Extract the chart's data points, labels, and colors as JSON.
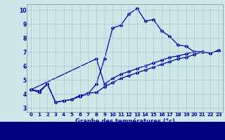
{
  "xlabel": "Graphe des températures (°c)",
  "bg_color": "#cce8e8",
  "line_color": "#0000bb",
  "grid_color": "#aacccc",
  "xlim": [
    -0.5,
    23.5
  ],
  "ylim": [
    2.7,
    10.4
  ],
  "xticks": [
    0,
    1,
    2,
    3,
    4,
    5,
    6,
    7,
    8,
    9,
    10,
    11,
    12,
    13,
    14,
    15,
    16,
    17,
    18,
    19,
    20,
    21,
    22,
    23
  ],
  "yticks": [
    3,
    4,
    5,
    6,
    7,
    8,
    9,
    10
  ],
  "line1_x": [
    0,
    1,
    2,
    3,
    4,
    5,
    6,
    7,
    8,
    9,
    10,
    11,
    12,
    13,
    14,
    15,
    16,
    17,
    18,
    19,
    20,
    21,
    22,
    23
  ],
  "line1_y": [
    4.3,
    4.1,
    4.7,
    3.4,
    3.5,
    3.6,
    3.8,
    4.0,
    4.7,
    6.5,
    8.7,
    8.9,
    9.7,
    10.1,
    9.2,
    9.3,
    8.5,
    8.1,
    7.5,
    7.4,
    7.0,
    7.0,
    6.9,
    7.1
  ],
  "line2_x": [
    0,
    1,
    2,
    3,
    4,
    5,
    6,
    7,
    8,
    9,
    10,
    11,
    12,
    13,
    14,
    15,
    16,
    17,
    18,
    19,
    20,
    21,
    22,
    23
  ],
  "line2_y": [
    4.3,
    4.2,
    4.7,
    3.4,
    3.5,
    3.6,
    3.9,
    4.05,
    4.1,
    4.5,
    4.8,
    5.1,
    5.3,
    5.5,
    5.7,
    5.9,
    6.1,
    6.3,
    6.5,
    6.6,
    6.8,
    7.0,
    6.9,
    7.1
  ],
  "line3_x": [
    0,
    8,
    9,
    10,
    11,
    12,
    13,
    14,
    15,
    16,
    17,
    18,
    19,
    20,
    21,
    22,
    23
  ],
  "line3_y": [
    4.3,
    6.5,
    4.7,
    5.1,
    5.4,
    5.6,
    5.8,
    6.0,
    6.2,
    6.4,
    6.6,
    6.7,
    6.85,
    7.0,
    7.0,
    6.9,
    7.1
  ]
}
